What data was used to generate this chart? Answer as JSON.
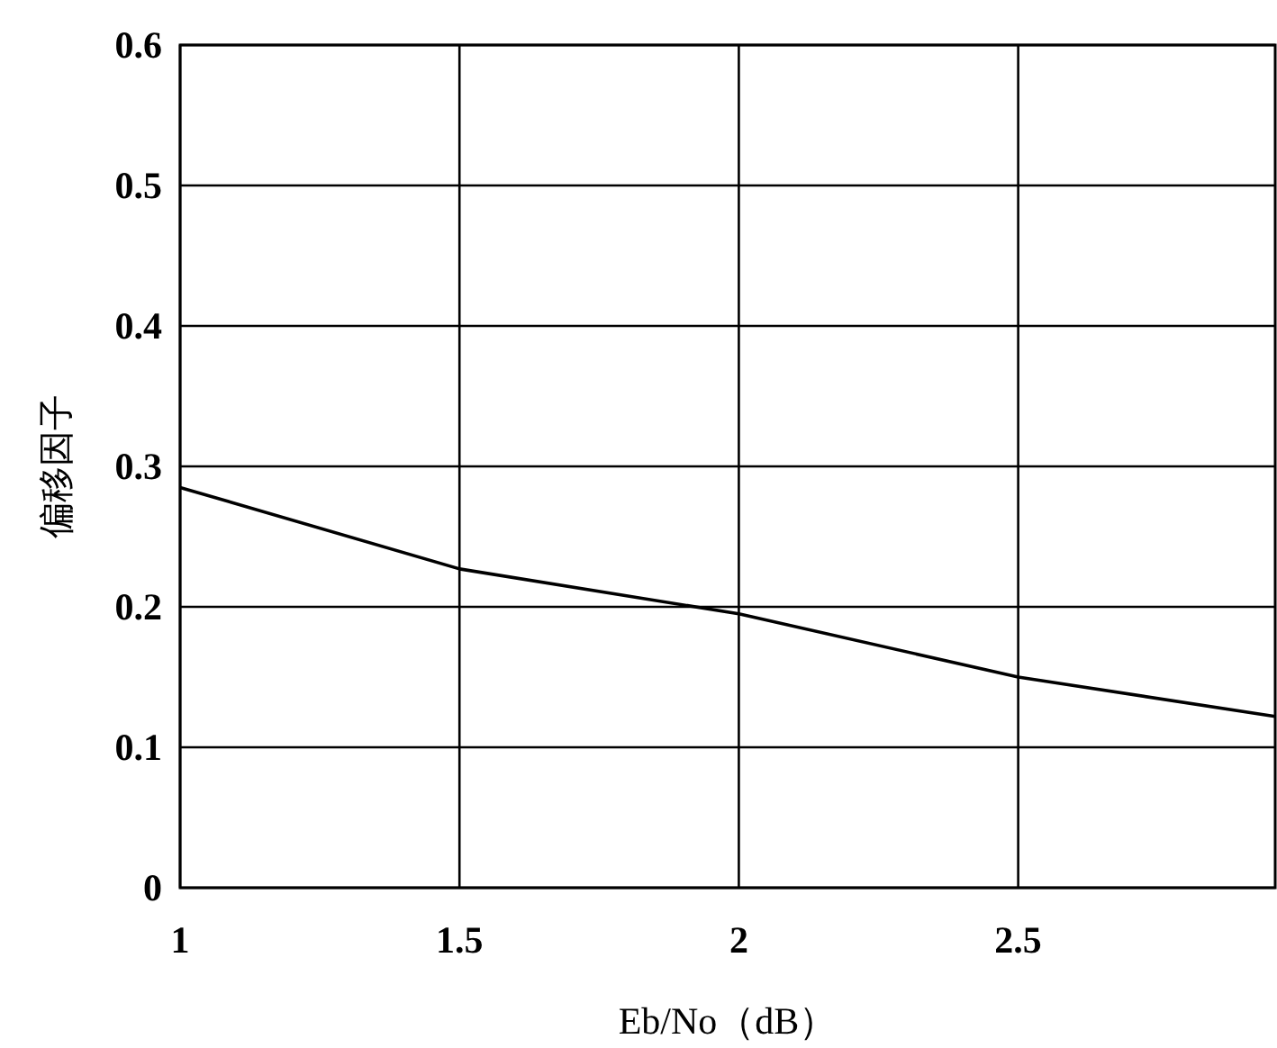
{
  "chart_data": {
    "type": "line",
    "xlabel": "Eb/No（dB）",
    "ylabel": "偏移因子",
    "x": [
      1,
      1.5,
      2,
      2.5,
      2.96
    ],
    "series": [
      {
        "color": "#000000",
        "values": [
          0.285,
          0.227,
          0.195,
          0.15,
          0.122
        ]
      }
    ],
    "xlim": [
      1,
      2.96
    ],
    "xticks": [
      1,
      1.5,
      2,
      2.5
    ],
    "ylim": [
      0,
      0.6
    ],
    "yticks": [
      0,
      0.1,
      0.2,
      0.3,
      0.4,
      0.5,
      0.6
    ],
    "grid": true
  }
}
